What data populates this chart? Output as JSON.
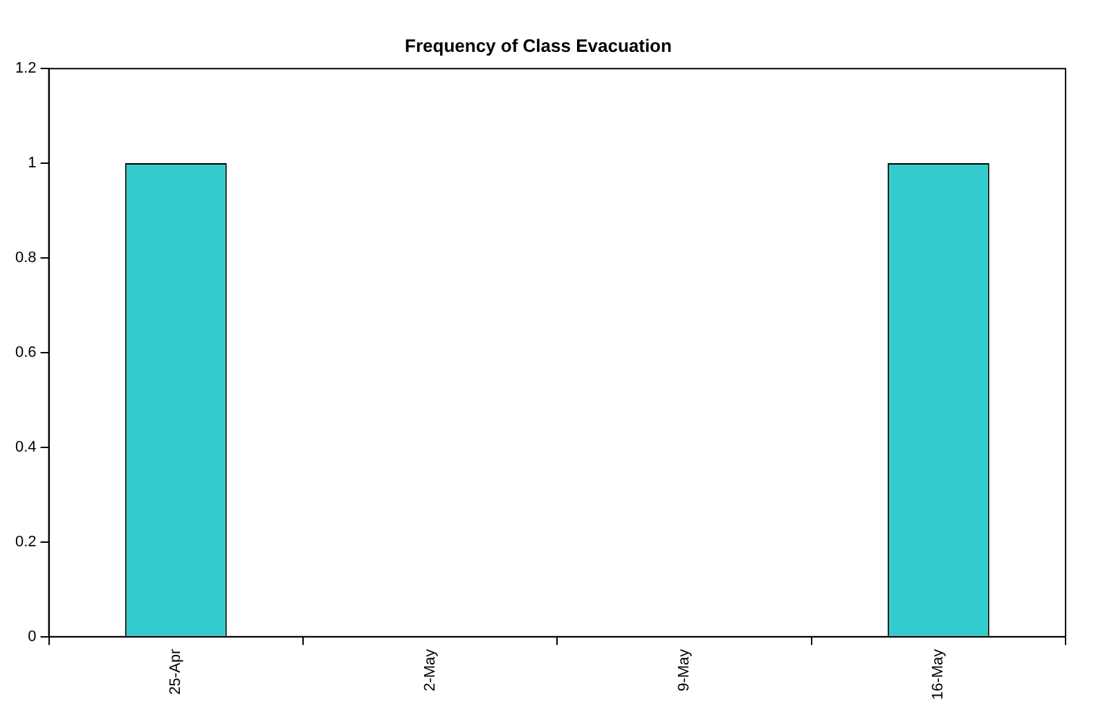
{
  "chart_data": {
    "type": "bar",
    "title": "Frequency of Class Evacuation",
    "categories": [
      "25-Apr",
      "2-May",
      "9-May",
      "16-May"
    ],
    "values": [
      1,
      0,
      0,
      1
    ],
    "color": "#33cccc",
    "ylim": [
      0,
      1.2
    ],
    "yticks": [
      0,
      0.2,
      0.4,
      0.6,
      0.8,
      1,
      1.2
    ]
  }
}
